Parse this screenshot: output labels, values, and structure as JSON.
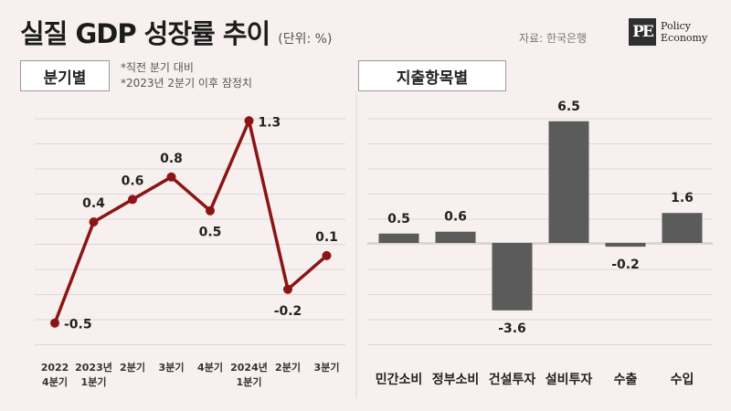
{
  "header": {
    "title": "실질 GDP 성장률 추이",
    "unit": "(단위: %)",
    "source": "자료: 한국은행",
    "logo_mark": "PE",
    "logo_line1": "Policy",
    "logo_line2": "Economy"
  },
  "left_panel": {
    "label": "분기별",
    "note1": "*직전 분기 대비",
    "note2": "*2023년 2분기 이후 잠정치"
  },
  "right_panel": {
    "label": "지출항목별"
  },
  "colors": {
    "line": "#8b1414",
    "bar": "#5b5b5b",
    "background": "#f7f0ef",
    "divider": "#d9d9d9"
  },
  "chart_data": [
    {
      "type": "line",
      "title": "분기별",
      "categories": [
        [
          "2022",
          "4분기"
        ],
        [
          "2023년",
          "1분기"
        ],
        [
          "2분기"
        ],
        [
          "3분기"
        ],
        [
          "4분기"
        ],
        [
          "2024년",
          "1분기"
        ],
        [
          "2분기"
        ],
        [
          "3분기"
        ]
      ],
      "values": [
        -0.5,
        0.4,
        0.6,
        0.8,
        0.5,
        1.3,
        -0.2,
        0.1
      ],
      "labels": [
        "-0.5",
        "0.4",
        "0.6",
        "0.8",
        "0.5",
        "1.3",
        "-0.2",
        "0.1"
      ],
      "ylim": [
        -0.6,
        1.4
      ],
      "grid": true,
      "legend": "none"
    },
    {
      "type": "bar",
      "title": "지출항목별",
      "categories": [
        "민간소비",
        "정부소비",
        "건설투자",
        "설비투자",
        "수출",
        "수입"
      ],
      "values": [
        0.5,
        0.6,
        -3.6,
        6.5,
        -0.2,
        1.6
      ],
      "labels": [
        "0.5",
        "0.6",
        "-3.6",
        "6.5",
        "-0.2",
        "1.6"
      ],
      "grid": true,
      "legend": "none"
    }
  ]
}
